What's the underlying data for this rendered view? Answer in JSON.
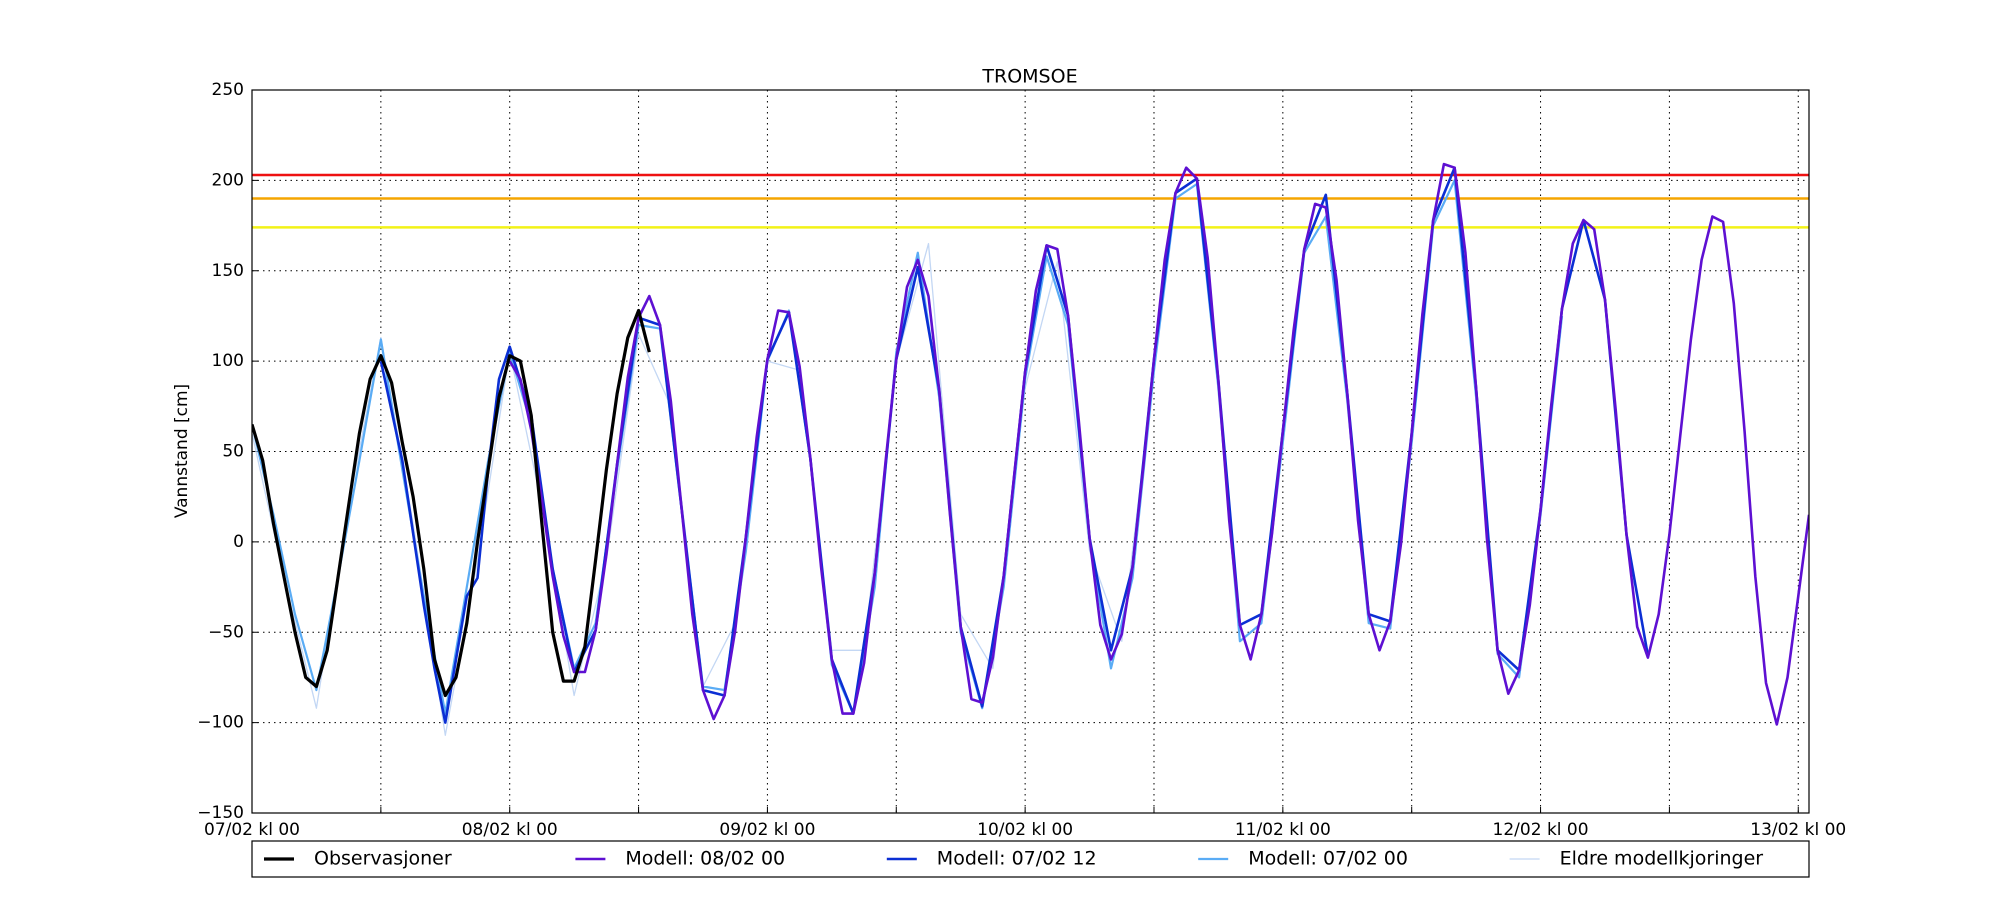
{
  "chart_data": {
    "type": "line",
    "title": "TROMSOE",
    "y_label": "Vannstand [cm]",
    "xlim": [
      0,
      145
    ],
    "ylim": [
      -150,
      250
    ],
    "xticks": [
      {
        "value": 0,
        "label": "07/02 kl 00"
      },
      {
        "value": 24,
        "label": "08/02 kl 00"
      },
      {
        "value": 48,
        "label": "09/02 kl 00"
      },
      {
        "value": 72,
        "label": "10/02 kl 00"
      },
      {
        "value": 96,
        "label": "11/02 kl 00"
      },
      {
        "value": 120,
        "label": "12/02 kl 00"
      },
      {
        "value": 144,
        "label": "13/02 kl 00"
      }
    ],
    "xminorticks": [
      12,
      36,
      60,
      84,
      108,
      132
    ],
    "yticks": [
      {
        "value": -150,
        "label": "−150"
      },
      {
        "value": -100,
        "label": "−100"
      },
      {
        "value": -50,
        "label": "−50"
      },
      0,
      50,
      100,
      150,
      200,
      250
    ],
    "grid": true,
    "legend": "bottom",
    "reference_lines": [
      {
        "value": 203,
        "color": "#ee1111"
      },
      {
        "value": 190,
        "color": "#f5a500"
      },
      {
        "value": 174,
        "color": "#f2f218"
      }
    ],
    "series": [
      {
        "name": "Eldre modellkjoringer",
        "color": "#c3d7f4",
        "width": 1.3,
        "x": [
          0,
          3,
          6,
          9,
          12,
          15,
          18,
          21,
          24,
          27,
          30,
          33,
          36,
          39,
          42,
          45,
          48,
          51,
          54,
          57,
          60,
          63,
          66,
          69,
          72,
          75,
          78,
          81,
          84
        ],
        "values": [
          60,
          -20,
          -92,
          20,
          113,
          10,
          -107,
          -10,
          105,
          20,
          -85,
          -10,
          115,
          75,
          -80,
          -45,
          100,
          95,
          -60,
          -60,
          100,
          165,
          -40,
          -70,
          85,
          155,
          -5,
          -55,
          95
        ]
      },
      {
        "name": "Modell: 07/02 00",
        "color": "#5aacf5",
        "width": 2.2,
        "x": [
          0,
          2,
          4,
          6,
          8,
          10,
          12,
          14,
          16,
          18,
          20,
          22,
          24,
          26,
          28,
          30,
          32,
          34,
          36,
          38,
          40,
          42,
          44,
          46,
          48,
          50,
          52,
          54,
          56,
          58,
          60,
          62,
          64,
          66,
          68,
          70,
          72,
          74,
          76,
          78,
          80,
          82,
          84,
          86,
          88,
          90,
          92,
          94,
          96,
          98,
          100,
          102,
          104,
          106,
          108,
          110,
          112,
          114,
          116,
          118,
          120,
          122
        ],
        "values": [
          65,
          15,
          -40,
          -82,
          -20,
          45,
          112,
          40,
          -30,
          -95,
          -25,
          45,
          105,
          65,
          -15,
          -70,
          -45,
          40,
          120,
          118,
          18,
          -80,
          -82,
          -5,
          100,
          128,
          45,
          -68,
          -95,
          -25,
          105,
          160,
          80,
          -50,
          -92,
          -25,
          90,
          158,
          120,
          0,
          -70,
          -20,
          95,
          190,
          198,
          85,
          -55,
          -45,
          55,
          160,
          180,
          78,
          -45,
          -48,
          55,
          175,
          200,
          80,
          -62,
          -75,
          15,
          125
        ]
      },
      {
        "name": "Modell: 07/02 12",
        "color": "#0b2fd4",
        "width": 2.6,
        "x": [
          12,
          14,
          16,
          17,
          18,
          19,
          20,
          21,
          22,
          23,
          24,
          26,
          28,
          30,
          32,
          34,
          36,
          38,
          40,
          42,
          44,
          46,
          48,
          50,
          52,
          54,
          56,
          58,
          60,
          62,
          64,
          66,
          68,
          70,
          72,
          74,
          76,
          78,
          80,
          82,
          84,
          86,
          88,
          90,
          92,
          94,
          96,
          98,
          100,
          102,
          104,
          106,
          108,
          110,
          112,
          114,
          116,
          118,
          120,
          122,
          124,
          126,
          128,
          130
        ],
        "values": [
          100,
          45,
          -35,
          -70,
          -100,
          -65,
          -30,
          -20,
          40,
          90,
          108,
          70,
          -15,
          -72,
          -49,
          43,
          124,
          120,
          19,
          -82,
          -85,
          3,
          101,
          127,
          46,
          -65,
          -95,
          -17,
          101,
          152,
          84,
          -47,
          -91,
          -19,
          94,
          164,
          125,
          2,
          -60,
          -14,
          101,
          193,
          201,
          89,
          -46,
          -40,
          61,
          162,
          192,
          82,
          -40,
          -44,
          60,
          178,
          207,
          85,
          -60,
          -71,
          18,
          129,
          178,
          134,
          4,
          -63
        ]
      },
      {
        "name": "Modell: 08/02 00",
        "color": "#5e10d2",
        "width": 2.6,
        "x": [
          24,
          25,
          26,
          27,
          28,
          29,
          30,
          31,
          32,
          33,
          34,
          35,
          36,
          37,
          38,
          39,
          40,
          41,
          42,
          43,
          44,
          45,
          46,
          47,
          48,
          49,
          50,
          51,
          52,
          53,
          54,
          55,
          56,
          57,
          58,
          59,
          60,
          61,
          62,
          63,
          64,
          65,
          66,
          67,
          68,
          69,
          70,
          71,
          72,
          73,
          74,
          75,
          76,
          77,
          78,
          79,
          80,
          81,
          82,
          83,
          84,
          85,
          86,
          87,
          88,
          89,
          90,
          91,
          92,
          93,
          94,
          95,
          96,
          97,
          98,
          99,
          100,
          101,
          102,
          103,
          104,
          105,
          106,
          107,
          108,
          109,
          110,
          111,
          112,
          113,
          114,
          115,
          116,
          117,
          118,
          119,
          120,
          121,
          122,
          123,
          124,
          125,
          126,
          127,
          128,
          129,
          130,
          131,
          132,
          133,
          134,
          135,
          136,
          137,
          138,
          139,
          140,
          141,
          142,
          143,
          144,
          145
        ],
        "values": [
          100,
          90,
          62,
          23,
          -19,
          -52,
          -72,
          -72,
          -49,
          -7,
          43,
          91,
          124,
          136,
          120,
          78,
          19,
          -40,
          -82,
          -98,
          -85,
          -49,
          3,
          58,
          101,
          128,
          127,
          97,
          46,
          -14,
          -65,
          -95,
          -95,
          -67,
          -17,
          44,
          101,
          141,
          156,
          136,
          84,
          15,
          -47,
          -87,
          -89,
          -64,
          -19,
          38,
          94,
          139,
          164,
          162,
          125,
          67,
          2,
          -46,
          -65,
          -51,
          -14,
          41,
          101,
          156,
          193,
          207,
          201,
          157,
          89,
          12,
          -46,
          -65,
          -40,
          5,
          61,
          117,
          162,
          187,
          185,
          145,
          82,
          12,
          -40,
          -60,
          -44,
          -1,
          60,
          126,
          178,
          209,
          207,
          160,
          85,
          2,
          -60,
          -84,
          -71,
          -35,
          18,
          76,
          129,
          165,
          178,
          173,
          134,
          73,
          4,
          -47,
          -64,
          -40,
          4,
          58,
          112,
          156,
          180,
          177,
          132,
          61,
          -19,
          -78,
          -101,
          -75,
          -30,
          15
        ]
      },
      {
        "name": "Observasjoner",
        "color": "#000000",
        "width": 3.2,
        "x": [
          0,
          1,
          2,
          3,
          4,
          5,
          6,
          7,
          8,
          9,
          10,
          11,
          12,
          13,
          14,
          15,
          16,
          17,
          18,
          19,
          20,
          21,
          22,
          23,
          24,
          25,
          26,
          27,
          28,
          29,
          30,
          31,
          32,
          33,
          34,
          35,
          36,
          37
        ],
        "values": [
          65,
          45,
          10,
          -20,
          -50,
          -75,
          -80,
          -60,
          -20,
          20,
          60,
          90,
          103,
          88,
          55,
          25,
          -15,
          -65,
          -85,
          -75,
          -45,
          0,
          40,
          80,
          103,
          100,
          70,
          10,
          -50,
          -77,
          -77,
          -58,
          -10,
          40,
          82,
          113,
          128,
          105
        ]
      }
    ],
    "legend_order": [
      4,
      3,
      2,
      1,
      0
    ]
  }
}
